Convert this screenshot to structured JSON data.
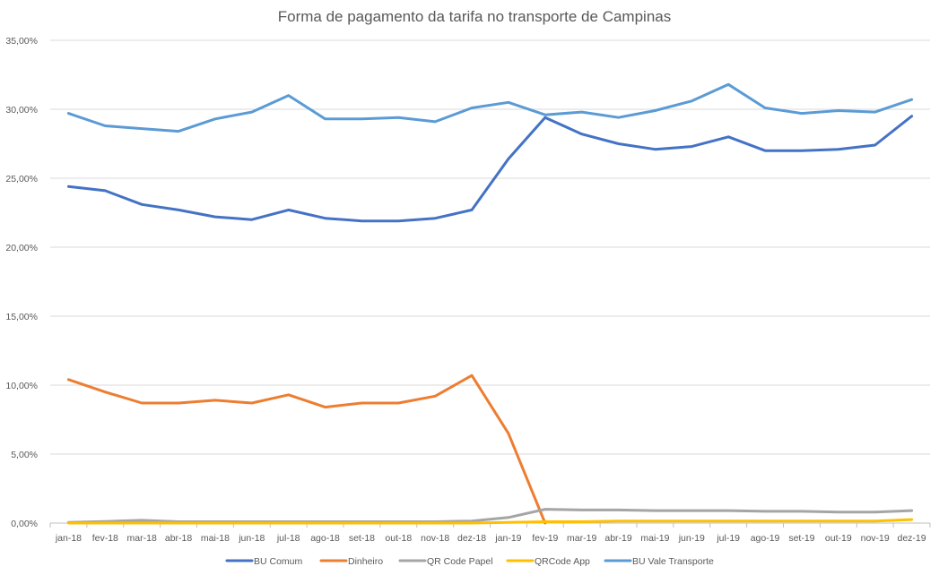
{
  "chart_data": {
    "type": "line",
    "title": "Forma de pagamento da tarifa no transporte de Campinas",
    "xlabel": "",
    "ylabel": "",
    "ylim": [
      0,
      35
    ],
    "y_ticks": [
      "0,00%",
      "5,00%",
      "10,00%",
      "15,00%",
      "20,00%",
      "25,00%",
      "30,00%",
      "35,00%"
    ],
    "grid": true,
    "legend_position": "bottom",
    "categories": [
      "jan-18",
      "fev-18",
      "mar-18",
      "abr-18",
      "mai-18",
      "jun-18",
      "jul-18",
      "ago-18",
      "set-18",
      "out-18",
      "nov-18",
      "dez-18",
      "jan-19",
      "fev-19",
      "mar-19",
      "abr-19",
      "mai-19",
      "jun-19",
      "jul-19",
      "ago-19",
      "set-19",
      "out-19",
      "nov-19",
      "dez-19"
    ],
    "series": [
      {
        "name": "BU Comum",
        "color": "#4472C4",
        "values": [
          24.4,
          24.1,
          23.1,
          22.7,
          22.2,
          22.0,
          22.7,
          22.1,
          21.9,
          21.9,
          22.1,
          22.7,
          26.4,
          29.4,
          28.2,
          27.5,
          27.1,
          27.3,
          28.0,
          27.0,
          27.0,
          27.1,
          27.4,
          29.5
        ]
      },
      {
        "name": "Dinheiro",
        "color": "#ED7D31",
        "values": [
          10.4,
          9.5,
          8.7,
          8.7,
          8.9,
          8.7,
          9.3,
          8.4,
          8.7,
          8.7,
          9.2,
          10.7,
          6.5,
          0.0,
          null,
          null,
          null,
          null,
          null,
          null,
          null,
          null,
          null,
          null
        ]
      },
      {
        "name": "QR Code Papel",
        "color": "#A5A5A5",
        "values": [
          0.05,
          0.12,
          0.2,
          0.1,
          0.1,
          0.1,
          0.1,
          0.1,
          0.1,
          0.1,
          0.1,
          0.15,
          0.4,
          1.0,
          0.95,
          0.95,
          0.9,
          0.9,
          0.9,
          0.85,
          0.85,
          0.8,
          0.8,
          0.9
        ]
      },
      {
        "name": "QRCode App",
        "color": "#FFC000",
        "values": [
          0.0,
          0.0,
          0.0,
          0.0,
          0.0,
          0.0,
          0.0,
          0.0,
          0.0,
          0.0,
          0.0,
          0.0,
          0.05,
          0.1,
          0.1,
          0.15,
          0.15,
          0.15,
          0.15,
          0.15,
          0.15,
          0.15,
          0.15,
          0.25
        ]
      },
      {
        "name": "BU Vale Transporte",
        "color": "#5B9BD5",
        "values": [
          29.7,
          28.8,
          28.6,
          28.4,
          29.3,
          29.8,
          31.0,
          29.3,
          29.3,
          29.4,
          29.1,
          30.1,
          30.5,
          29.6,
          29.8,
          29.4,
          29.9,
          30.6,
          31.8,
          30.1,
          29.7,
          29.9,
          29.8,
          30.7
        ]
      }
    ]
  }
}
